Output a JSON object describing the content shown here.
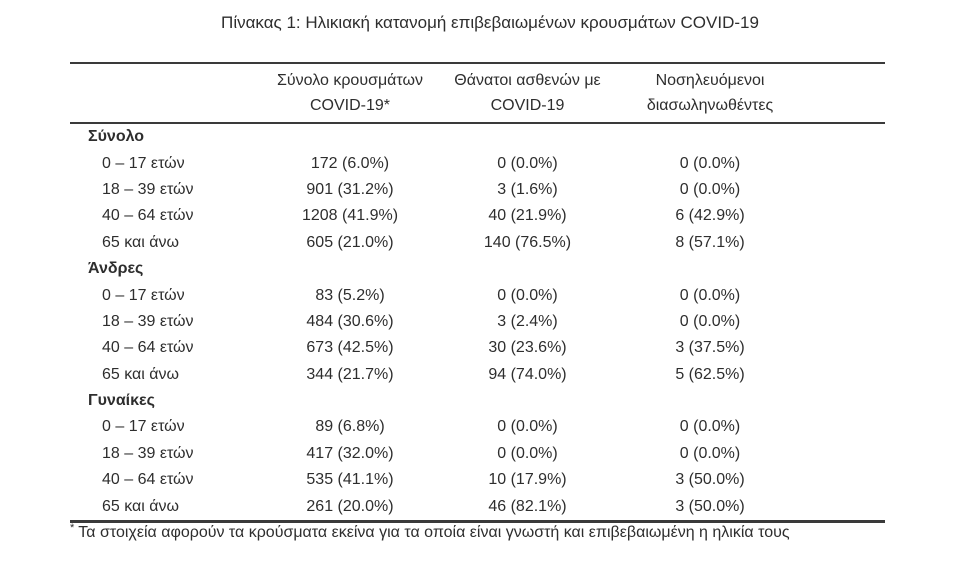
{
  "page": {
    "title": "Πίνακας 1: Ηλικιακή κατανομή επιβεβαιωμένων κρουσμάτων COVID-19"
  },
  "table": {
    "columns": [
      {
        "line1": "Σύνολο κρουσμάτων",
        "line2": "COVID-19*"
      },
      {
        "line1": "Θάνατοι ασθενών με",
        "line2": "COVID-19"
      },
      {
        "line1": "Νοσηλευόμενοι",
        "line2": "διασωληνωθέντες"
      }
    ],
    "groups": [
      {
        "name": "Σύνολο",
        "rows": [
          {
            "label": "0 – 17 ετών",
            "cases": "172 (6.0%)",
            "deaths": "0 (0.0%)",
            "intubated": "0 (0.0%)"
          },
          {
            "label": "18 – 39 ετών",
            "cases": "901 (31.2%)",
            "deaths": "3 (1.6%)",
            "intubated": "0 (0.0%)"
          },
          {
            "label": "40 – 64 ετών",
            "cases": "1208 (41.9%)",
            "deaths": "40 (21.9%)",
            "intubated": "6 (42.9%)"
          },
          {
            "label": "65 και άνω",
            "cases": "605 (21.0%)",
            "deaths": "140 (76.5%)",
            "intubated": "8 (57.1%)"
          }
        ]
      },
      {
        "name": "Άνδρες",
        "rows": [
          {
            "label": "0 – 17 ετών",
            "cases": "83 (5.2%)",
            "deaths": "0 (0.0%)",
            "intubated": "0 (0.0%)"
          },
          {
            "label": "18 – 39 ετών",
            "cases": "484 (30.6%)",
            "deaths": "3 (2.4%)",
            "intubated": "0 (0.0%)"
          },
          {
            "label": "40 – 64 ετών",
            "cases": "673 (42.5%)",
            "deaths": "30 (23.6%)",
            "intubated": "3 (37.5%)"
          },
          {
            "label": "65 και άνω",
            "cases": "344 (21.7%)",
            "deaths": "94 (74.0%)",
            "intubated": "5 (62.5%)"
          }
        ]
      },
      {
        "name": "Γυναίκες",
        "rows": [
          {
            "label": "0 – 17 ετών",
            "cases": "89 (6.8%)",
            "deaths": "0 (0.0%)",
            "intubated": "0 (0.0%)"
          },
          {
            "label": "18 – 39 ετών",
            "cases": "417 (32.0%)",
            "deaths": "0 (0.0%)",
            "intubated": "0 (0.0%)"
          },
          {
            "label": "40 – 64 ετών",
            "cases": "535 (41.1%)",
            "deaths": "10 (17.9%)",
            "intubated": "3 (50.0%)"
          },
          {
            "label": "65 και άνω",
            "cases": "261 (20.0%)",
            "deaths": "46 (82.1%)",
            "intubated": "3 (50.0%)"
          }
        ]
      }
    ]
  },
  "footnote": {
    "marker": "*",
    "text": "Τα στοιχεία αφορούν τα κρούσματα εκείνα για τα οποία είναι γνωστή και επιβεβαιωμένη η ηλικία τους"
  },
  "colors": {
    "text": "#2e2e2e",
    "rule": "#3a3a3a",
    "background": "#ffffff"
  }
}
